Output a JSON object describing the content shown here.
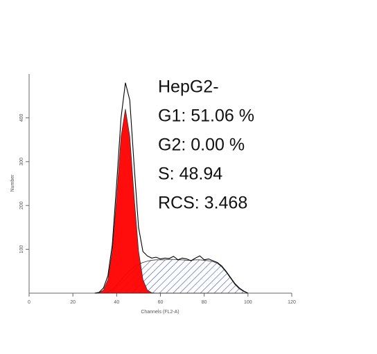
{
  "chart_data": {
    "type": "line",
    "xlabel": "Channels (FL2-A)",
    "ylabel": "Number",
    "annotations": [
      "HepG2-",
      "G1: 51.06 %",
      "G2: 0.00 %",
      "S: 48.94",
      "RCS: 3.468"
    ],
    "x": [
      30,
      32,
      34,
      36,
      38,
      40,
      42,
      44,
      46,
      48,
      50,
      52,
      54,
      56,
      58,
      60,
      62,
      64,
      66,
      68,
      70,
      72,
      74,
      76,
      78,
      80,
      82,
      84,
      86,
      88,
      90,
      92,
      94,
      96,
      98,
      100
    ],
    "series": [
      {
        "color": "#1f3c9c",
        "hatch": true,
        "fill": true,
        "values": [
          0,
          0,
          0,
          2,
          8,
          18,
          30,
          42,
          52,
          60,
          66,
          70,
          73,
          75,
          76,
          76,
          76,
          77,
          77,
          76,
          76,
          75,
          75,
          76,
          76,
          75,
          74,
          72,
          68,
          60,
          48,
          34,
          20,
          10,
          4,
          0
        ]
      },
      {
        "color": "#ff0000",
        "hatch": false,
        "fill": true,
        "values": [
          0,
          1,
          7,
          31,
          96,
          219,
          357,
          420,
          357,
          219,
          96,
          31,
          7,
          1,
          0,
          0,
          0,
          0,
          0,
          0,
          0,
          0,
          0,
          0,
          0,
          0,
          0,
          0,
          0,
          0,
          0,
          0,
          0,
          0,
          0,
          0
        ]
      },
      {
        "color": "#000000",
        "hatch": false,
        "fill": false,
        "values": [
          0,
          2,
          12,
          40,
          110,
          250,
          400,
          480,
          440,
          290,
          150,
          95,
          85,
          80,
          82,
          78,
          80,
          79,
          84,
          76,
          80,
          78,
          74,
          80,
          85,
          76,
          78,
          74,
          70,
          62,
          50,
          36,
          22,
          12,
          5,
          0
        ]
      }
    ],
    "xlim": [
      0,
      120
    ],
    "xticks": [
      0,
      20,
      40,
      60,
      80,
      100,
      120
    ],
    "ylim": [
      0,
      500
    ],
    "yticks": [
      100,
      200,
      300,
      400
    ]
  }
}
